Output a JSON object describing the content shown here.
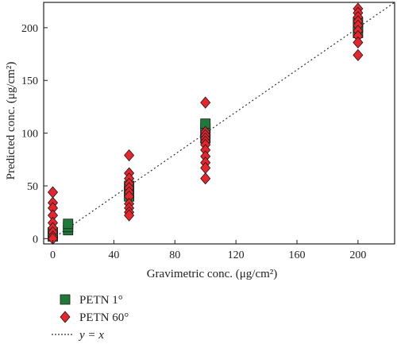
{
  "chart_data": {
    "type": "scatter",
    "title": "",
    "xlabel": "Gravimetric conc. (μg/cm²)",
    "ylabel": "Predicted conc. (μg/cm²)",
    "xlim": [
      -6,
      224
    ],
    "ylim": [
      -5,
      224
    ],
    "xticks": [
      0,
      40,
      80,
      120,
      160,
      200
    ],
    "yticks": [
      0,
      50,
      100,
      150,
      200
    ],
    "xtick_labels": [
      "0",
      "40",
      "80",
      "120",
      "160",
      "200"
    ],
    "ytick_labels": [
      "0",
      "50",
      "100",
      "150",
      "200"
    ],
    "grid": false,
    "legend_position": "below",
    "series": [
      {
        "name": "PETN 1°",
        "marker": "square",
        "color": "#1f7a3a",
        "points": [
          [
            0,
            2
          ],
          [
            0,
            4
          ],
          [
            0,
            6
          ],
          [
            10,
            8
          ],
          [
            10,
            11
          ],
          [
            10,
            14
          ],
          [
            50,
            40
          ],
          [
            50,
            45
          ],
          [
            50,
            50
          ],
          [
            100,
            95
          ],
          [
            100,
            100
          ],
          [
            100,
            105
          ],
          [
            100,
            109
          ],
          [
            200,
            195
          ],
          [
            200,
            200
          ],
          [
            200,
            205
          ]
        ]
      },
      {
        "name": "PETN 60°",
        "marker": "diamond",
        "color": "#e8242c",
        "points": [
          [
            0,
            44
          ],
          [
            0,
            34
          ],
          [
            0,
            29
          ],
          [
            0,
            22
          ],
          [
            0,
            15
          ],
          [
            0,
            10
          ],
          [
            0,
            6
          ],
          [
            0,
            2
          ],
          [
            0,
            0
          ],
          [
            50,
            79
          ],
          [
            50,
            62
          ],
          [
            50,
            57
          ],
          [
            50,
            52
          ],
          [
            50,
            48
          ],
          [
            50,
            44
          ],
          [
            50,
            40
          ],
          [
            50,
            33
          ],
          [
            50,
            29
          ],
          [
            50,
            25
          ],
          [
            50,
            22
          ],
          [
            100,
            129
          ],
          [
            100,
            101
          ],
          [
            100,
            98
          ],
          [
            100,
            95
          ],
          [
            100,
            92
          ],
          [
            100,
            89
          ],
          [
            100,
            84
          ],
          [
            100,
            78
          ],
          [
            100,
            72
          ],
          [
            100,
            67
          ],
          [
            100,
            57
          ],
          [
            200,
            218
          ],
          [
            200,
            214
          ],
          [
            200,
            210
          ],
          [
            200,
            206
          ],
          [
            200,
            202
          ],
          [
            200,
            197
          ],
          [
            200,
            192
          ],
          [
            200,
            186
          ],
          [
            200,
            174
          ]
        ]
      },
      {
        "name": "y = x",
        "type": "line",
        "style": "dotted",
        "color": "#333333",
        "x": [
          0,
          224
        ],
        "y": [
          0,
          224
        ]
      }
    ],
    "legend": [
      {
        "label": "PETN 1°"
      },
      {
        "label": "PETN 60°"
      },
      {
        "label": "y = x"
      }
    ]
  }
}
